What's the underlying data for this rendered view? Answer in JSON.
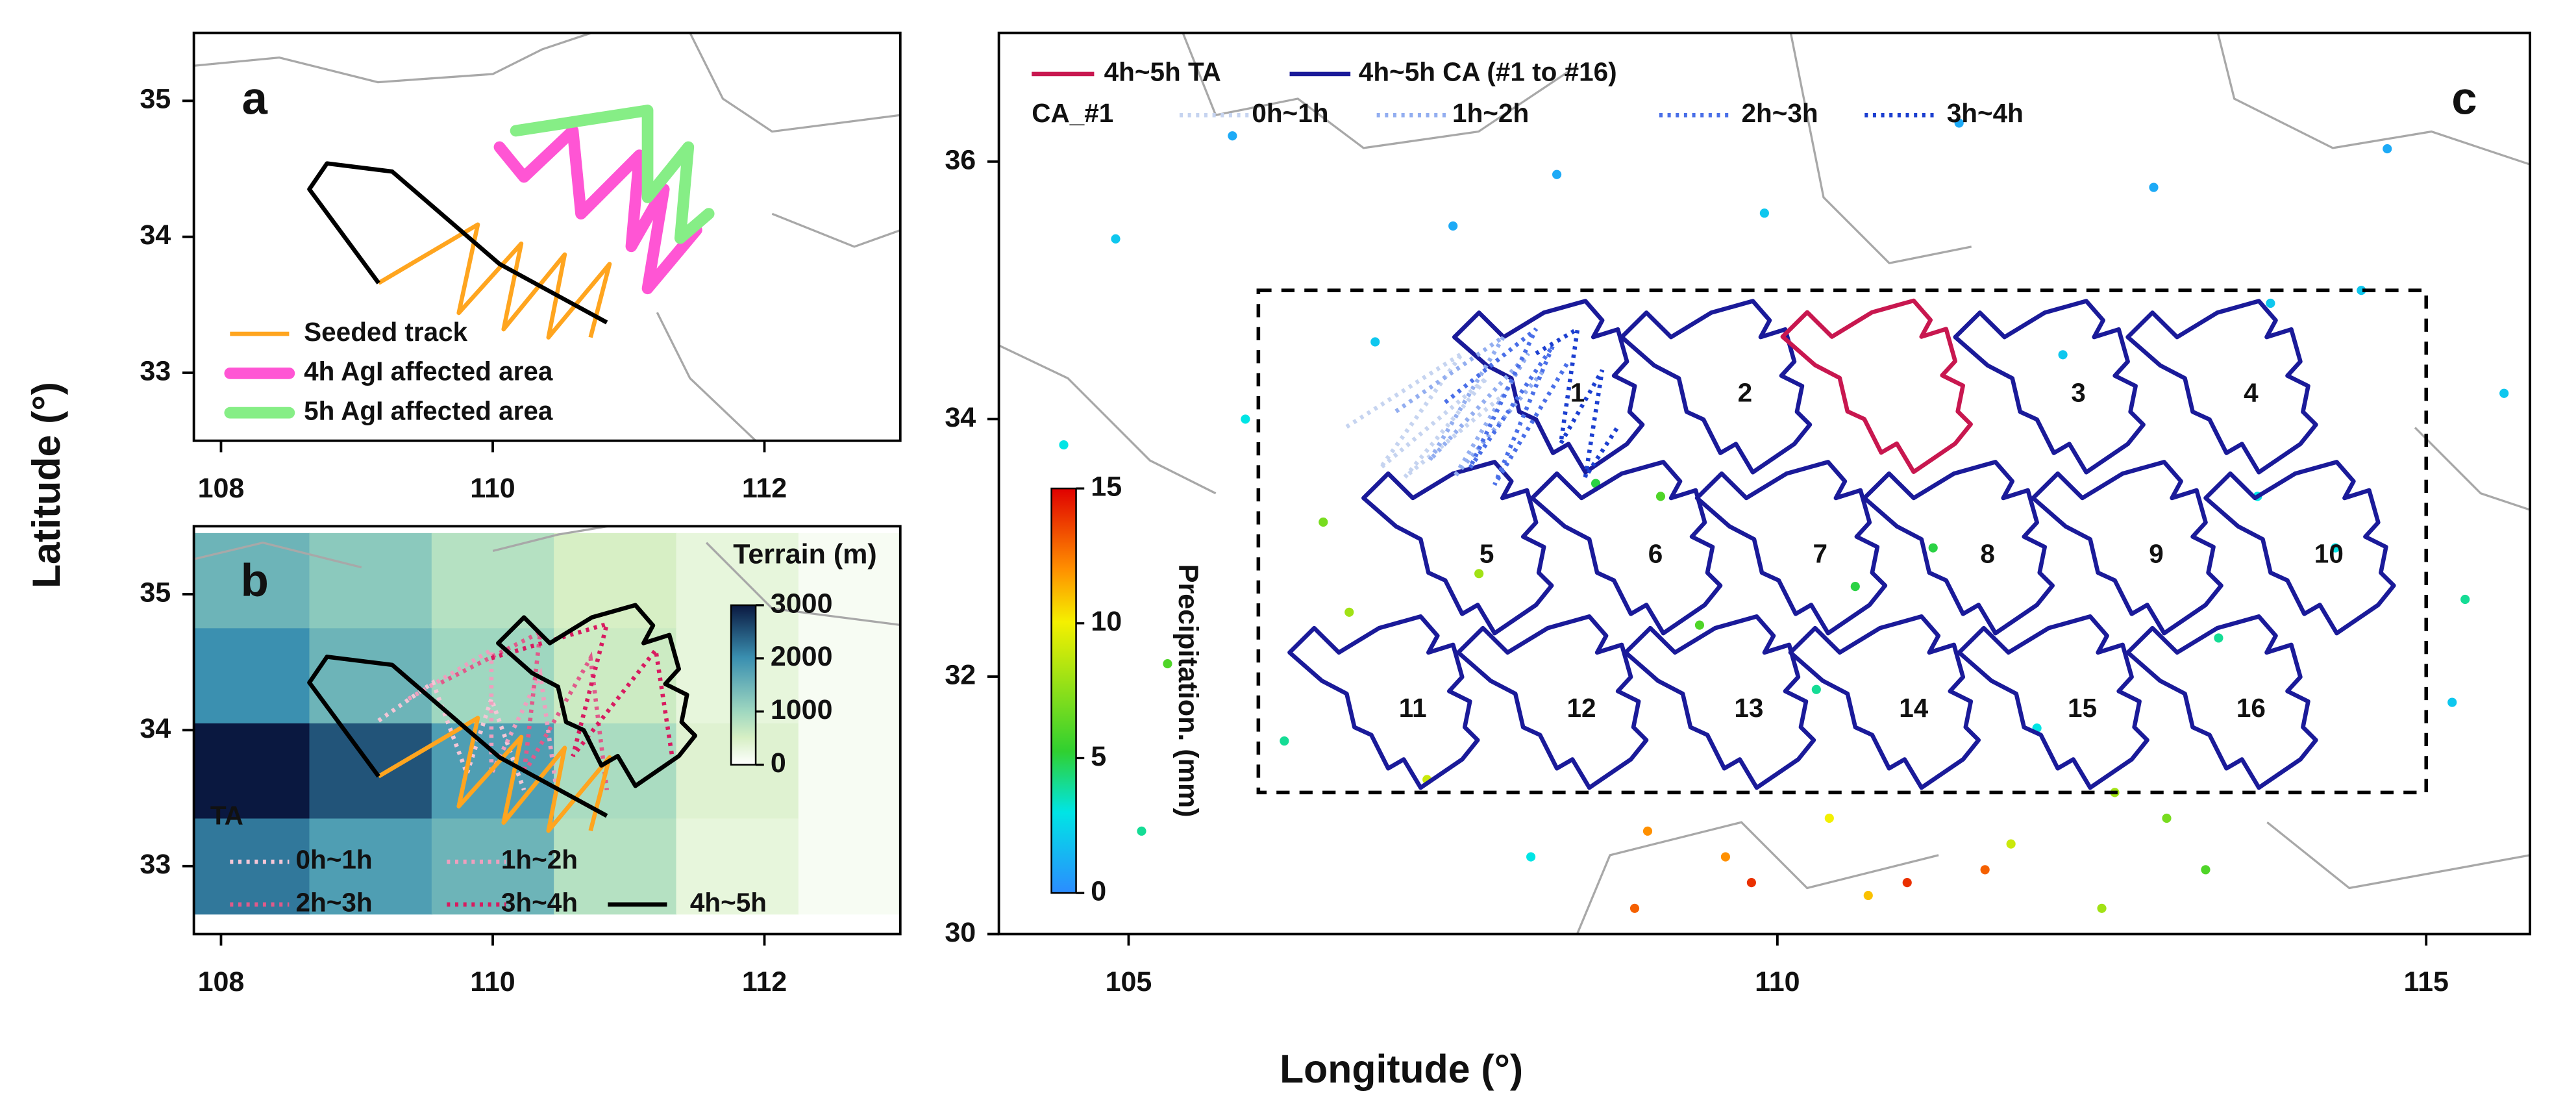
{
  "xlabel": "Longitude (°)",
  "ylabel": "Latitude (°)",
  "chart_data": [
    {
      "type": "map",
      "label": "a",
      "xlim": [
        107.8,
        113
      ],
      "ylim": [
        32.5,
        35.5
      ],
      "xticks": [
        108,
        110,
        112
      ],
      "yticks": [
        33,
        34,
        35
      ],
      "series": [
        {
          "name": "Seeded track",
          "color": "#ffa51f",
          "line": "solid",
          "lon": [
            109.16,
            109.89,
            109.75,
            110.21,
            110.08,
            110.53,
            110.41,
            110.86,
            110.72
          ],
          "lat": [
            33.66,
            34.09,
            33.44,
            33.95,
            33.32,
            33.87,
            33.26,
            33.8,
            33.26
          ]
        },
        {
          "name": "4h AgI affected area",
          "color": "#ff55d4",
          "line": "thick",
          "lon": [
            110.05,
            110.23,
            110.59,
            110.65,
            111.08,
            111.02,
            111.26,
            111.14,
            111.5
          ],
          "lat": [
            34.66,
            34.44,
            34.78,
            34.17,
            34.6,
            33.93,
            34.35,
            33.62,
            34.05
          ]
        },
        {
          "name": "5h AgI affected area",
          "color": "#86ee86",
          "line": "thick",
          "lon": [
            110.17,
            111.14,
            111.14,
            111.44,
            111.38,
            111.59
          ],
          "lat": [
            34.78,
            34.93,
            34.29,
            34.66,
            33.99,
            34.17
          ]
        },
        {
          "color": "#000000",
          "line": "solid",
          "lon": [
            109.16,
            108.65,
            108.78,
            109.26,
            110.05,
            110.84
          ],
          "lat": [
            33.66,
            34.35,
            34.54,
            34.48,
            33.8,
            33.37
          ]
        }
      ]
    },
    {
      "type": "map",
      "label": "b",
      "xlim": [
        107.8,
        113
      ],
      "ylim": [
        32.5,
        35.5
      ],
      "xticks": [
        108,
        110,
        112
      ],
      "yticks": [
        33,
        34,
        35
      ],
      "terrain": {
        "title": "Terrain (m)",
        "lim": [
          0,
          3000
        ],
        "ticks": [
          0,
          1000,
          2000,
          3000
        ],
        "lon": [
          108.2,
          109.1,
          110.0,
          110.9,
          111.8,
          112.7
        ],
        "lat": [
          35.1,
          34.4,
          33.7,
          33.0
        ],
        "values": [
          [
            1500,
            1200,
            800,
            500,
            300,
            100
          ],
          [
            2000,
            1500,
            1000,
            600,
            300,
            100
          ],
          [
            3000,
            2500,
            1800,
            900,
            400,
            100
          ],
          [
            2200,
            1800,
            1500,
            800,
            300,
            100
          ]
        ]
      },
      "legend_title": "TA",
      "series": [
        {
          "name": "0h~1h",
          "color": "#f4c6d6",
          "line": "dotted",
          "lon": [
            109.16,
            109.56,
            109.81,
            109.99,
            110.23
          ],
          "lat": [
            34.07,
            34.35,
            33.68,
            34.23,
            33.56
          ]
        },
        {
          "name": "1h~2h",
          "color": "#ee9fbe",
          "line": "dotted",
          "lon": [
            109.38,
            109.99,
            109.99,
            110.35,
            110.47
          ],
          "lat": [
            34.23,
            34.59,
            33.68,
            34.41,
            33.56
          ]
        },
        {
          "name": "2h~3h",
          "color": "#e05a8a",
          "line": "dotted",
          "lon": [
            109.62,
            110.35,
            110.23,
            110.72,
            110.84
          ],
          "lat": [
            34.35,
            34.72,
            33.68,
            34.53,
            33.56
          ]
        },
        {
          "name": "3h~4h",
          "color": "#d81b60",
          "line": "dotted",
          "lon": [
            109.99,
            110.84,
            110.59,
            111.2,
            111.32
          ],
          "lat": [
            34.53,
            34.78,
            33.81,
            34.59,
            33.81
          ]
        },
        {
          "color": "#ffa51f",
          "line": "solid",
          "lon": [
            109.16,
            109.89,
            109.75,
            110.21,
            110.08,
            110.53,
            110.41,
            110.86,
            110.72
          ],
          "lat": [
            33.66,
            34.09,
            33.44,
            33.95,
            33.32,
            33.87,
            33.26,
            33.8,
            33.26
          ]
        },
        {
          "color": "#000000",
          "line": "solid",
          "lon": [
            109.16,
            108.65,
            108.78,
            109.26,
            110.05,
            110.84
          ],
          "lat": [
            33.66,
            34.35,
            34.54,
            34.48,
            33.8,
            33.37
          ]
        },
        {
          "name": "4h~5h",
          "color": "#000000",
          "line": "solid",
          "closed": true,
          "lon": [
            110.04,
            110.23,
            110.42,
            110.73,
            111.05,
            111.18,
            111.11,
            111.3,
            111.37,
            111.27,
            111.43,
            111.39,
            111.49,
            111.37,
            111.05,
            110.92,
            110.8,
            110.67,
            110.54,
            110.48,
            110.29
          ],
          "lat": [
            34.64,
            34.83,
            34.64,
            34.83,
            34.92,
            34.77,
            34.64,
            34.7,
            34.45,
            34.34,
            34.26,
            34.06,
            33.96,
            33.81,
            33.59,
            33.81,
            33.74,
            34.0,
            34.06,
            34.32,
            34.42
          ]
        }
      ]
    },
    {
      "type": "map",
      "label": "c",
      "xlim": [
        104,
        115.8
      ],
      "ylim": [
        30,
        37
      ],
      "xticks": [
        105,
        110,
        115
      ],
      "yticks": [
        30,
        32,
        34,
        36
      ],
      "stations": {
        "title": "Precipitation. (mm)",
        "lim": [
          0,
          15
        ],
        "ticks": [
          0,
          5,
          10,
          15
        ],
        "lon": [
          104.5,
          104.9,
          105.3,
          105.8,
          106.2,
          106.5,
          106.9,
          107.3,
          107.7,
          108.1,
          108.6,
          109.0,
          109.4,
          109.8,
          110.3,
          110.7,
          111.2,
          111.6,
          112.0,
          112.5,
          112.9,
          113.4,
          113.8,
          114.3,
          114.7,
          115.2,
          115.6,
          105.1,
          105.9,
          106.7,
          107.5,
          108.3,
          109.1,
          109.9,
          110.6,
          111.4,
          112.2,
          113.0,
          113.7,
          114.5,
          115.3,
          108.9,
          109.6,
          110.4,
          111.0,
          111.8,
          112.6,
          113.3
        ],
        "lat": [
          33.8,
          35.4,
          32.1,
          36.2,
          31.5,
          33.2,
          34.6,
          31.2,
          32.8,
          30.6,
          33.5,
          30.8,
          32.4,
          30.4,
          31.9,
          30.3,
          33.0,
          30.5,
          31.6,
          30.2,
          35.8,
          32.3,
          34.9,
          33.0,
          36.1,
          31.8,
          34.2,
          30.8,
          34.0,
          32.5,
          35.5,
          35.9,
          33.4,
          35.6,
          32.7,
          36.3,
          34.5,
          30.9,
          33.4,
          35.0,
          32.6,
          30.2,
          30.6,
          30.9,
          30.4,
          30.7,
          31.1,
          30.5
        ],
        "values": [
          3,
          2,
          6,
          1,
          4,
          7,
          2,
          9,
          8,
          3,
          5,
          12,
          6,
          14,
          4,
          11,
          5,
          13,
          3,
          8,
          1,
          4,
          2,
          3,
          1,
          2,
          2,
          4,
          3,
          8,
          1,
          1,
          6,
          2,
          5,
          1,
          2,
          7,
          3,
          2,
          4,
          13,
          12,
          10,
          14,
          9,
          8,
          6
        ]
      },
      "box": {
        "lon": [
          106,
          115
        ],
        "lat": [
          31.1,
          35
        ]
      },
      "legend_title": "CA_#1",
      "series": [
        {
          "name": "4h~5h TA",
          "color": "#c8174f",
          "line": "solid",
          "closed": true,
          "lon": [
            110.04,
            110.23,
            110.42,
            110.73,
            111.05,
            111.18,
            111.11,
            111.3,
            111.37,
            111.27,
            111.43,
            111.39,
            111.49,
            111.37,
            111.05,
            110.92,
            110.8,
            110.67,
            110.54,
            110.48,
            110.29
          ],
          "lat": [
            34.64,
            34.83,
            34.64,
            34.83,
            34.92,
            34.77,
            34.64,
            34.7,
            34.45,
            34.34,
            34.26,
            34.06,
            33.96,
            33.81,
            33.59,
            33.81,
            33.74,
            34.0,
            34.06,
            34.32,
            34.42
          ]
        },
        {
          "name": "0h~1h",
          "color": "#c6d4f0",
          "line": "dotted",
          "lon": [
            106.68,
            107.57,
            106.94,
            107.76,
            107.13,
            107.89
          ],
          "lat": [
            33.94,
            34.51,
            33.62,
            34.32,
            33.55,
            34.19
          ]
        },
        {
          "name": "1h~2h",
          "color": "#93aef0",
          "line": "dotted",
          "lon": [
            107.06,
            107.89,
            107.32,
            108.08,
            107.51,
            108.2
          ],
          "lat": [
            34.06,
            34.64,
            33.68,
            34.51,
            33.55,
            34.38
          ]
        },
        {
          "name": "2h~3h",
          "color": "#4a6fe8",
          "line": "dotted",
          "lon": [
            107.44,
            108.14,
            107.63,
            108.27,
            107.82,
            108.39
          ],
          "lat": [
            34.13,
            34.7,
            33.62,
            34.57,
            33.49,
            34.45
          ]
        },
        {
          "name": "3h~4h",
          "color": "#1c3fd0",
          "line": "dotted",
          "lon": [
            108.14,
            108.46,
            108.33,
            108.65,
            108.52,
            108.77
          ],
          "lat": [
            34.51,
            34.7,
            33.81,
            34.38,
            33.55,
            33.94
          ]
        }
      ],
      "ca": {
        "name": "4h~5h CA (#1 to #16)",
        "color": "#1a1a99",
        "areas": [
          {
            "label": "1",
            "lon": 108.46,
            "lat": 34.19
          },
          {
            "label": "2",
            "lon": 109.75,
            "lat": 34.19
          },
          {
            "label": "3",
            "lon": 112.32,
            "lat": 34.19
          },
          {
            "label": "4",
            "lon": 113.65,
            "lat": 34.19
          },
          {
            "label": "5",
            "lon": 107.76,
            "lat": 32.94
          },
          {
            "label": "6",
            "lon": 109.06,
            "lat": 32.94
          },
          {
            "label": "7",
            "lon": 110.33,
            "lat": 32.94
          },
          {
            "label": "8",
            "lon": 111.62,
            "lat": 32.94
          },
          {
            "label": "9",
            "lon": 112.92,
            "lat": 32.94
          },
          {
            "label": "10",
            "lon": 114.25,
            "lat": 32.94
          },
          {
            "label": "11",
            "lon": 107.19,
            "lat": 31.74
          },
          {
            "label": "12",
            "lon": 108.49,
            "lat": 31.74
          },
          {
            "label": "13",
            "lon": 109.78,
            "lat": 31.74
          },
          {
            "label": "14",
            "lon": 111.05,
            "lat": 31.74
          },
          {
            "label": "15",
            "lon": 112.35,
            "lat": 31.74
          },
          {
            "label": "16",
            "lon": 113.65,
            "lat": 31.74
          }
        ]
      }
    }
  ]
}
